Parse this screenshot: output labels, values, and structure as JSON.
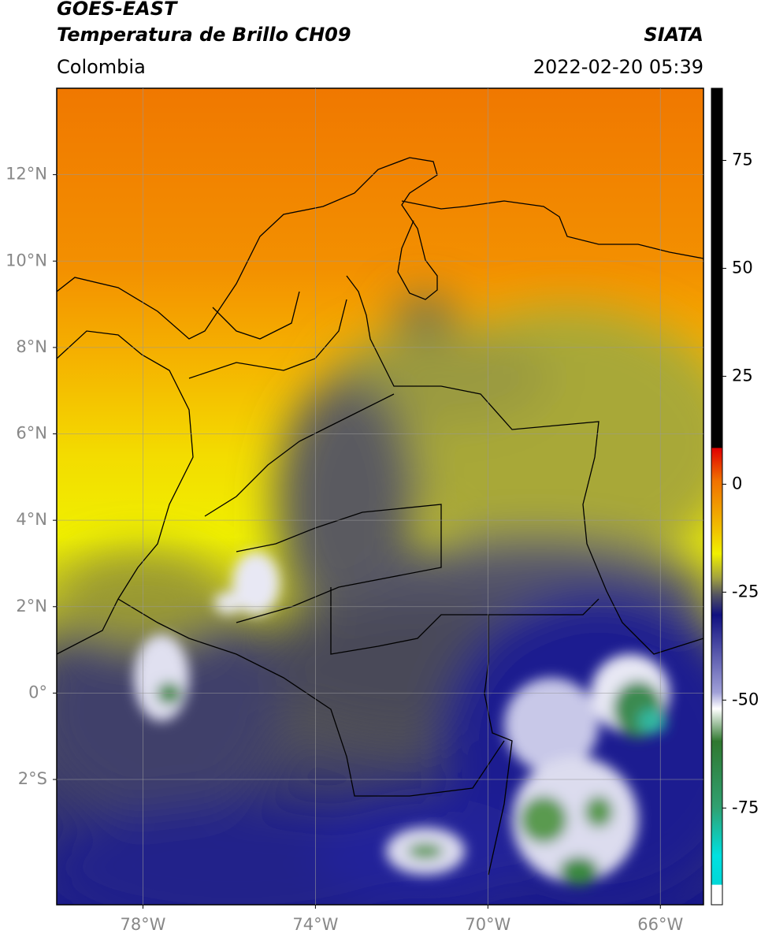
{
  "header": {
    "title_line1": "GOES-EAST",
    "title_line2": "Temperatura de Brillo CH09",
    "region": "Colombia",
    "source": "SIATA",
    "timestamp": "2022-02-20 05:39"
  },
  "map": {
    "lon_lim": [
      -80,
      -65
    ],
    "lat_lim": [
      -4.9,
      14
    ],
    "lon_ticks": [
      {
        "value": -78,
        "label": "78°W"
      },
      {
        "value": -74,
        "label": "74°W"
      },
      {
        "value": -70,
        "label": "70°W"
      },
      {
        "value": -66,
        "label": "66°W"
      }
    ],
    "lat_ticks": [
      {
        "value": 12,
        "label": "12°N"
      },
      {
        "value": 10,
        "label": "10°N"
      },
      {
        "value": 8,
        "label": "8°N"
      },
      {
        "value": 6,
        "label": "6°N"
      },
      {
        "value": 4,
        "label": "4°N"
      },
      {
        "value": 2,
        "label": "2°N"
      },
      {
        "value": 0,
        "label": "0°"
      },
      {
        "value": -2,
        "label": "2°S"
      }
    ],
    "grid": true
  },
  "colorbar": {
    "lim": [
      -97.4,
      91.7
    ],
    "ticks": [
      75,
      50,
      25,
      0,
      -25,
      -50,
      -75
    ]
  }
}
